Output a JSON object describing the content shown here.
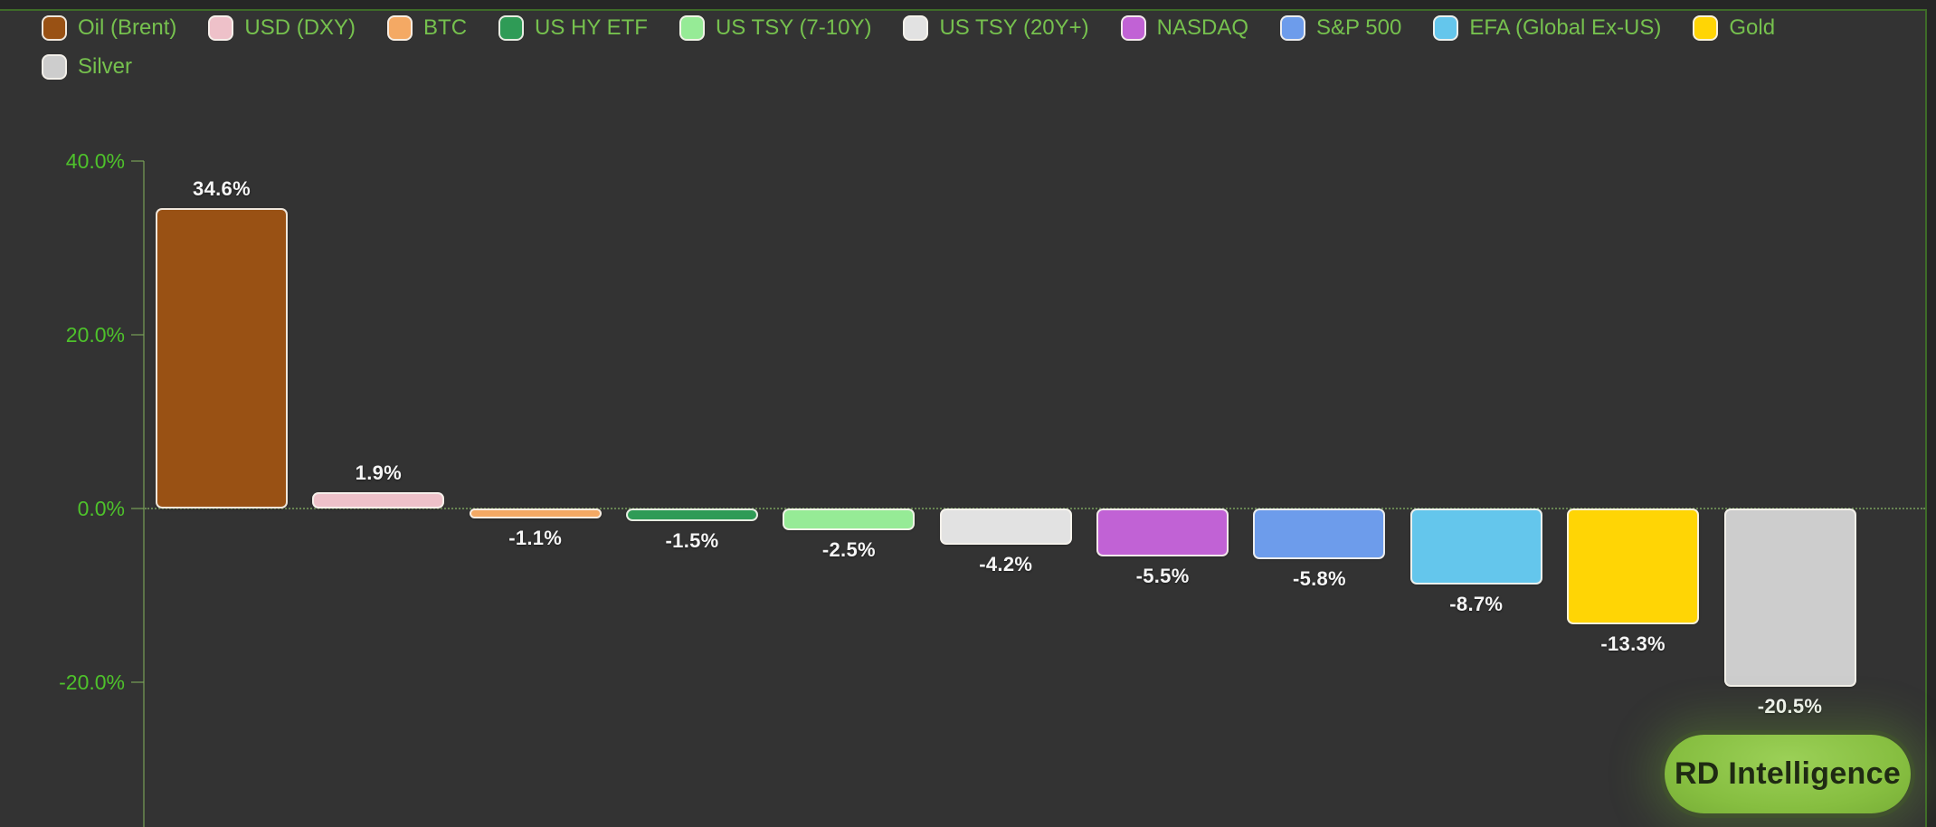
{
  "badge": {
    "label": "RD Intelligence"
  },
  "colors": {
    "outer_background": "#262626",
    "panel_background": "#333333",
    "panel_border_green": "#3e6b28",
    "axis_line_green": "#7daa5a",
    "ytick_label_green": "#4ec22b",
    "legend_text_green": "#76c14e",
    "bar_border": "#f6f3ed",
    "value_label": "#f6f6f6",
    "badge_background": "#8cc544",
    "badge_text": "#1f2a13"
  },
  "chart_data": {
    "type": "bar",
    "title": "",
    "xlabel": "",
    "ylabel": "",
    "categories": [
      "Oil (Brent)",
      "USD (DXY)",
      "BTC",
      "US HY ETF",
      "US TSY (7-10Y)",
      "US TSY (20Y+)",
      "NASDAQ",
      "S&P 500",
      "EFA (Global Ex-US)",
      "Gold",
      "Silver"
    ],
    "values": [
      34.6,
      1.9,
      -1.1,
      -1.5,
      -2.5,
      -4.2,
      -5.5,
      -5.8,
      -8.7,
      -13.3,
      -20.5
    ],
    "value_labels": [
      "34.6%",
      "1.9%",
      "-1.1%",
      "-1.5%",
      "-2.5%",
      "-4.2%",
      "-5.5%",
      "-5.8%",
      "-8.7%",
      "-13.3%",
      "-20.5%"
    ],
    "colors": [
      "#995114",
      "#eec1c9",
      "#f4a964",
      "#2f9b56",
      "#96eb96",
      "#e2e2e2",
      "#c162d5",
      "#6d9ceb",
      "#64c6ec",
      "#ffd505",
      "#cdcdcd"
    ],
    "yticks": [
      40,
      20,
      0,
      -20
    ],
    "ytick_labels": [
      "40.0%",
      "20.0%",
      "0.0%",
      "-20.0%"
    ],
    "ylim": [
      -36,
      40
    ],
    "grid": "dotted zero line only",
    "legend_position": "top",
    "legend_wraps_to_second_row": [
      "Silver"
    ]
  }
}
